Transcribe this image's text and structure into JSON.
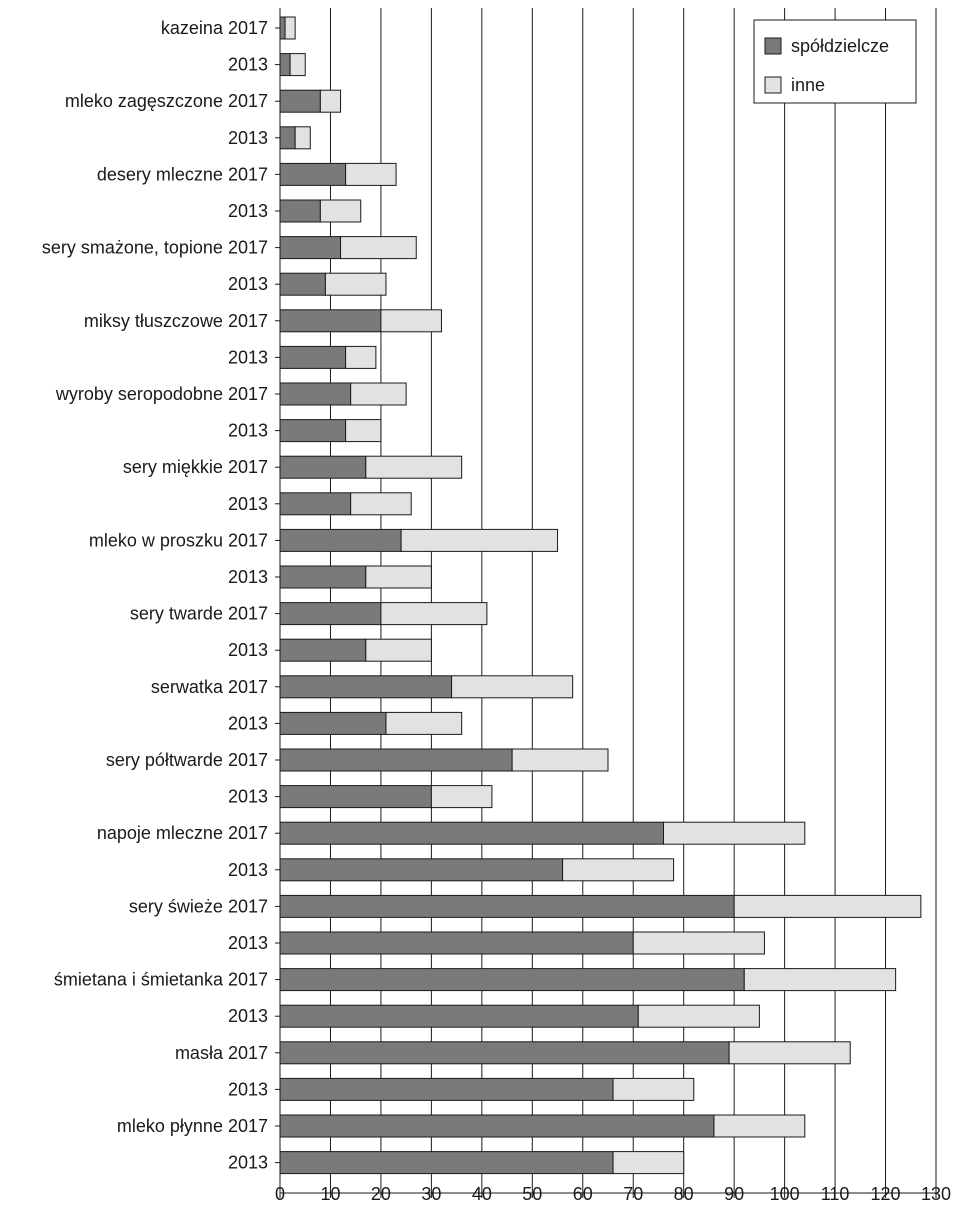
{
  "chart_data": {
    "type": "bar",
    "orientation": "horizontal",
    "stacked": true,
    "categories": [
      "kazeina 2017",
      "2013",
      "mleko zagęszczone 2017",
      "2013",
      "desery mleczne 2017",
      "2013",
      "sery smażone, topione 2017",
      "2013",
      "miksy tłuszczowe 2017",
      "2013",
      "wyroby seropodobne 2017",
      "2013",
      "sery miękkie 2017",
      "2013",
      "mleko w proszku 2017",
      "2013",
      "sery twarde 2017",
      "2013",
      "serwatka 2017",
      "2013",
      "sery półtwarde 2017",
      "2013",
      "napoje mleczne 2017",
      "2013",
      "sery świeże 2017",
      "2013",
      "śmietana i śmietanka 2017",
      "2013",
      "masła 2017",
      "2013",
      "mleko płynne 2017",
      "2013"
    ],
    "series": [
      {
        "name": "spółdzielcze",
        "color": "#7a7a7a",
        "values": [
          1,
          2,
          8,
          3,
          13,
          8,
          12,
          9,
          20,
          13,
          14,
          13,
          17,
          14,
          24,
          17,
          20,
          17,
          34,
          21,
          46,
          30,
          76,
          56,
          90,
          70,
          92,
          71,
          89,
          66,
          86,
          66
        ]
      },
      {
        "name": "inne",
        "color": "#e2e2e2",
        "values": [
          2,
          3,
          4,
          3,
          10,
          8,
          15,
          12,
          12,
          6,
          11,
          7,
          19,
          12,
          31,
          13,
          21,
          13,
          24,
          15,
          19,
          12,
          28,
          22,
          37,
          26,
          30,
          24,
          24,
          16,
          18,
          14
        ]
      }
    ],
    "xlim": [
      0,
      130
    ],
    "xticks": [
      "0",
      "10",
      "20",
      "30",
      "40",
      "50",
      "60",
      "70",
      "80",
      "90",
      "100",
      "110",
      "120",
      "130"
    ],
    "grid": "vertical",
    "legend_position": "top-right"
  }
}
